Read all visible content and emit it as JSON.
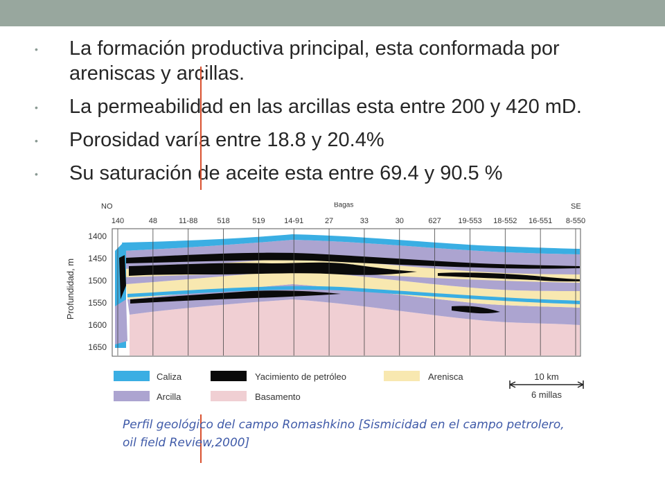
{
  "bullets": [
    "La formación productiva principal, esta conformada por areniscas y arcillas.",
    " La permeabilidad en las arcillas esta entre 200 y 420 mD.",
    "Porosidad varía entre 18.8 y 20.4%",
    "Su saturación de aceite esta entre 69.4 y 90.5 %"
  ],
  "figure": {
    "compass_left": "NO",
    "compass_right": "SE",
    "town_label": "Bagas",
    "wells": [
      "140",
      "48",
      "11-88",
      "518",
      "519",
      "14-91",
      "27",
      "33",
      "30",
      "627",
      "19-553",
      "18-552",
      "16-551",
      "8-550"
    ],
    "y_axis_label": "Profundidad, m",
    "y_ticks": [
      "1400",
      "1450",
      "1500",
      "1550",
      "1600",
      "1650"
    ],
    "legend": [
      {
        "label": "Caliza",
        "color": "#3aaee3"
      },
      {
        "label": "Yacimiento de petróleo",
        "color": "#0a0a0a"
      },
      {
        "label": "Arenisca",
        "color": "#f8e8b0"
      },
      {
        "label": "Arcilla",
        "color": "#aca4d0"
      },
      {
        "label": "Basamento",
        "color": "#f0cfd3"
      }
    ],
    "scale_km": "10 km",
    "scale_miles": "6 millas"
  },
  "caption": "Perfil geológico del campo Romashkino [Sismicidad en el campo petrolero, oil field Review,2000]"
}
